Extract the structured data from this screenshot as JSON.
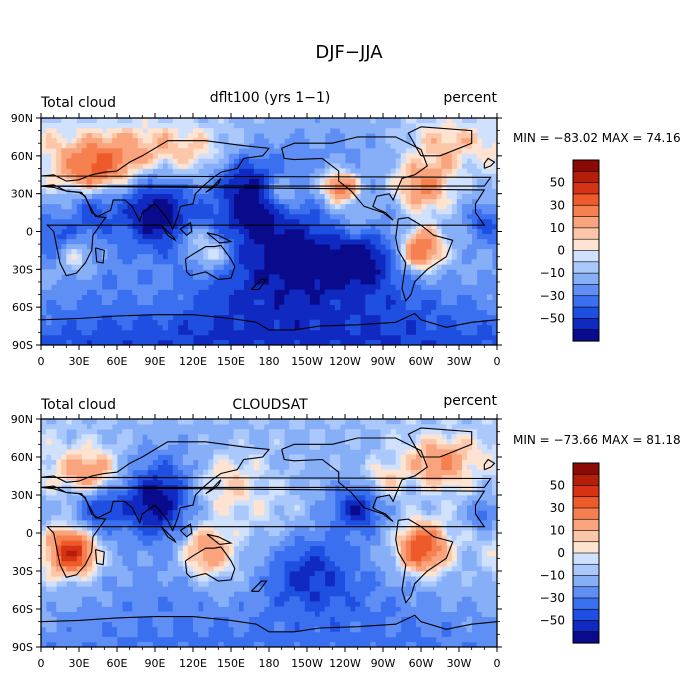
{
  "figure_title": "DJF−JJA",
  "colors": {
    "bins": [
      "#0a0a8c",
      "#1029c0",
      "#1e4fe0",
      "#3a6ff0",
      "#5f8ff5",
      "#86aff8",
      "#aac8fb",
      "#cfe1fd",
      "#fde3d0",
      "#fcc6a8",
      "#f9a47d",
      "#f6804f",
      "#ef5a2a",
      "#d63314",
      "#b51f0a",
      "#8b0a04"
    ],
    "coast": "#000000"
  },
  "chart_data": [
    {
      "type": "heatmap",
      "label_left": "Total cloud",
      "title": "dflt100 (yrs 1−1)",
      "label_right": "percent",
      "stats": "MIN = −83.02 MAX =  74.16",
      "xticks": [
        "0",
        "30E",
        "60E",
        "90E",
        "120E",
        "150E",
        "180",
        "150W",
        "120W",
        "90W",
        "60W",
        "30W",
        "0"
      ],
      "yticks": [
        "90N",
        "60N",
        "30N",
        "0",
        "30S",
        "60S",
        "90S"
      ],
      "xlim": [
        0,
        360
      ],
      "ylim": [
        -90,
        90
      ],
      "colorbar_labels": [
        "50",
        "30",
        "10",
        "0",
        "−10",
        "−30",
        "−50"
      ],
      "levels": [
        -70,
        -60,
        -50,
        -40,
        -30,
        -20,
        -10,
        -5,
        0,
        5,
        10,
        20,
        30,
        40,
        50,
        60,
        70
      ],
      "blobs": [
        {
          "lon": 40,
          "lat": 45,
          "r": 25,
          "v": 45
        },
        {
          "lon": 90,
          "lat": 15,
          "r": 25,
          "v": -45
        },
        {
          "lon": 40,
          "lat": 20,
          "r": 22,
          "v": -38
        },
        {
          "lon": 15,
          "lat": -10,
          "r": 18,
          "v": -35
        },
        {
          "lon": 25,
          "lat": -18,
          "r": 14,
          "v": 35
        },
        {
          "lon": 235,
          "lat": 35,
          "r": 14,
          "v": 55
        },
        {
          "lon": 300,
          "lat": 35,
          "r": 22,
          "v": 40
        },
        {
          "lon": 300,
          "lat": -15,
          "r": 18,
          "v": 55
        },
        {
          "lon": 250,
          "lat": -18,
          "r": 25,
          "v": -40
        },
        {
          "lon": 170,
          "lat": 20,
          "r": 25,
          "v": -35
        },
        {
          "lon": 190,
          "lat": 30,
          "r": 15,
          "v": 35
        },
        {
          "lon": 135,
          "lat": -18,
          "r": 15,
          "v": 38
        },
        {
          "lon": 120,
          "lat": -5,
          "r": 12,
          "v": 22
        },
        {
          "lon": 250,
          "lat": 5,
          "r": 20,
          "v": 28
        },
        {
          "lon": 200,
          "lat": -20,
          "r": 25,
          "v": -25
        },
        {
          "lon": 180,
          "lat": -75,
          "r": 150,
          "v": -55
        },
        {
          "lon": 100,
          "lat": -45,
          "r": 30,
          "v": 15
        },
        {
          "lon": 120,
          "lat": 60,
          "r": 25,
          "v": 28
        },
        {
          "lon": 60,
          "lat": 60,
          "r": 25,
          "v": 20
        },
        {
          "lon": 350,
          "lat": 8,
          "r": 15,
          "v": -30
        },
        {
          "lon": 160,
          "lat": 45,
          "r": 18,
          "v": -20
        },
        {
          "lon": 320,
          "lat": 70,
          "r": 20,
          "v": 22
        }
      ]
    },
    {
      "type": "heatmap",
      "label_left": "Total cloud",
      "title": "CLOUDSAT",
      "label_right": "percent",
      "stats": "MIN = −73.66 MAX =  81.18",
      "xticks": [
        "0",
        "30E",
        "60E",
        "90E",
        "120E",
        "150E",
        "180",
        "150W",
        "120W",
        "90W",
        "60W",
        "30W",
        "0"
      ],
      "yticks": [
        "90N",
        "60N",
        "30N",
        "0",
        "30S",
        "60S",
        "90S"
      ],
      "xlim": [
        0,
        360
      ],
      "ylim": [
        -90,
        90
      ],
      "colorbar_labels": [
        "50",
        "30",
        "10",
        "0",
        "−10",
        "−30",
        "−50"
      ],
      "levels": [
        -70,
        -60,
        -50,
        -40,
        -30,
        -20,
        -10,
        -5,
        0,
        5,
        10,
        20,
        30,
        40,
        50,
        60,
        70
      ],
      "blobs": [
        {
          "lon": 25,
          "lat": -15,
          "r": 18,
          "v": 60
        },
        {
          "lon": 300,
          "lat": -12,
          "r": 20,
          "v": 55
        },
        {
          "lon": 130,
          "lat": -15,
          "r": 22,
          "v": 40
        },
        {
          "lon": 90,
          "lat": 22,
          "r": 25,
          "v": -48
        },
        {
          "lon": 45,
          "lat": 20,
          "r": 20,
          "v": -40
        },
        {
          "lon": 250,
          "lat": 20,
          "r": 18,
          "v": -40
        },
        {
          "lon": 180,
          "lat": 10,
          "r": 40,
          "v": 20
        },
        {
          "lon": 210,
          "lat": -30,
          "r": 30,
          "v": -28
        },
        {
          "lon": 180,
          "lat": -75,
          "r": 150,
          "v": -35
        },
        {
          "lon": 40,
          "lat": 45,
          "r": 20,
          "v": 35
        },
        {
          "lon": 315,
          "lat": 55,
          "r": 20,
          "v": 30
        },
        {
          "lon": 350,
          "lat": 15,
          "r": 12,
          "v": -30
        },
        {
          "lon": 100,
          "lat": 50,
          "r": 25,
          "v": -18
        },
        {
          "lon": 140,
          "lat": 40,
          "r": 25,
          "v": 20
        },
        {
          "lon": 160,
          "lat": -45,
          "r": 30,
          "v": 12
        },
        {
          "lon": 270,
          "lat": 40,
          "r": 15,
          "v": 22
        }
      ]
    }
  ]
}
